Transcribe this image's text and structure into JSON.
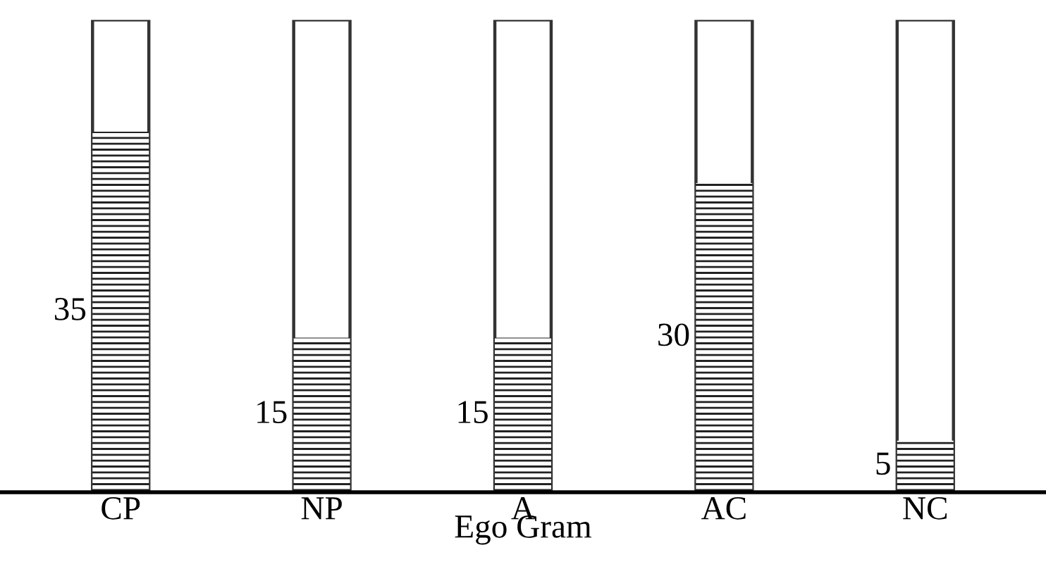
{
  "chart_data": {
    "type": "bar",
    "xlabel": "Ego Gram",
    "categories": [
      "CP",
      "NP",
      "A",
      "AC",
      "NC"
    ],
    "values": [
      35,
      15,
      15,
      30,
      5
    ],
    "color": "#ffffff",
    "data_labels": true,
    "grid": false,
    "legend": false
  }
}
